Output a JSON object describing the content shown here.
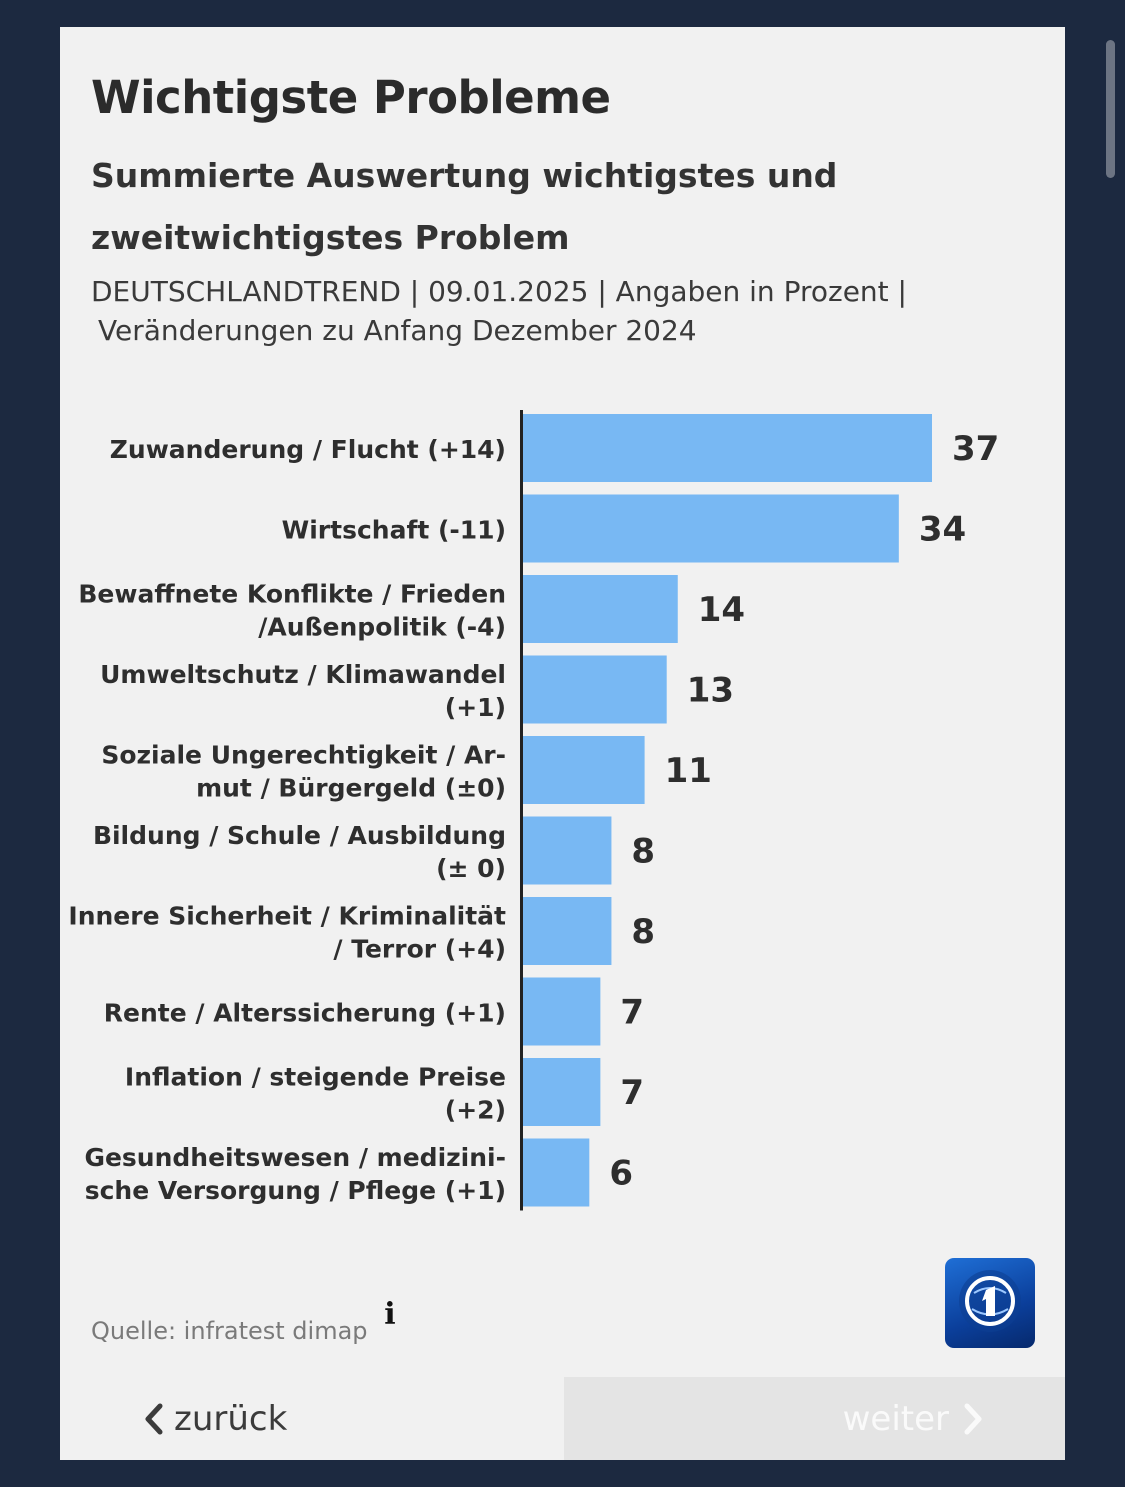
{
  "card": {
    "title": "Wichtigste Probleme",
    "subtitle": "Summierte Auswertung wichtigstes und zweitwichtigstes Problem",
    "meta_line1": "DEUTSCHLANDTREND | 09.01.2025 | Angaben in Prozent |",
    "meta_line2": "Veränderungen zu Anfang Dezember 2024",
    "source": "Quelle: infratest dimap",
    "info_symbol": "i"
  },
  "nav": {
    "back_label": "zurück",
    "next_label": "weiter"
  },
  "chart_data": {
    "type": "bar",
    "orientation": "horizontal",
    "title": "Wichtigste Probleme",
    "xlabel": "Angaben in Prozent",
    "ylabel": "",
    "xlim": [
      0,
      45
    ],
    "bar_color": "#78b8f3",
    "categories": [
      [
        "Zuwanderung / Flucht (+14)"
      ],
      [
        "Wirtschaft (-11)"
      ],
      [
        "Bewaffnete Konflikte / Frieden",
        "/Außenpolitik (-4)"
      ],
      [
        "Umweltschutz / Klimawandel",
        "(+1)"
      ],
      [
        "Soziale Ungerechtigkeit / Ar-",
        "mut / Bürgergeld (±0)"
      ],
      [
        "Bildung / Schule / Ausbildung",
        "(± 0)"
      ],
      [
        "Innere Sicherheit / Kriminalität",
        "/ Terror (+4)"
      ],
      [
        "Rente / Alterssicherung (+1)"
      ],
      [
        "Inflation / steigende Preise",
        "(+2)"
      ],
      [
        "Gesundheitswesen / medizini-",
        "sche Versorgung / Pflege (+1)"
      ]
    ],
    "values": [
      37,
      34,
      14,
      13,
      11,
      8,
      8,
      7,
      7,
      6
    ]
  }
}
